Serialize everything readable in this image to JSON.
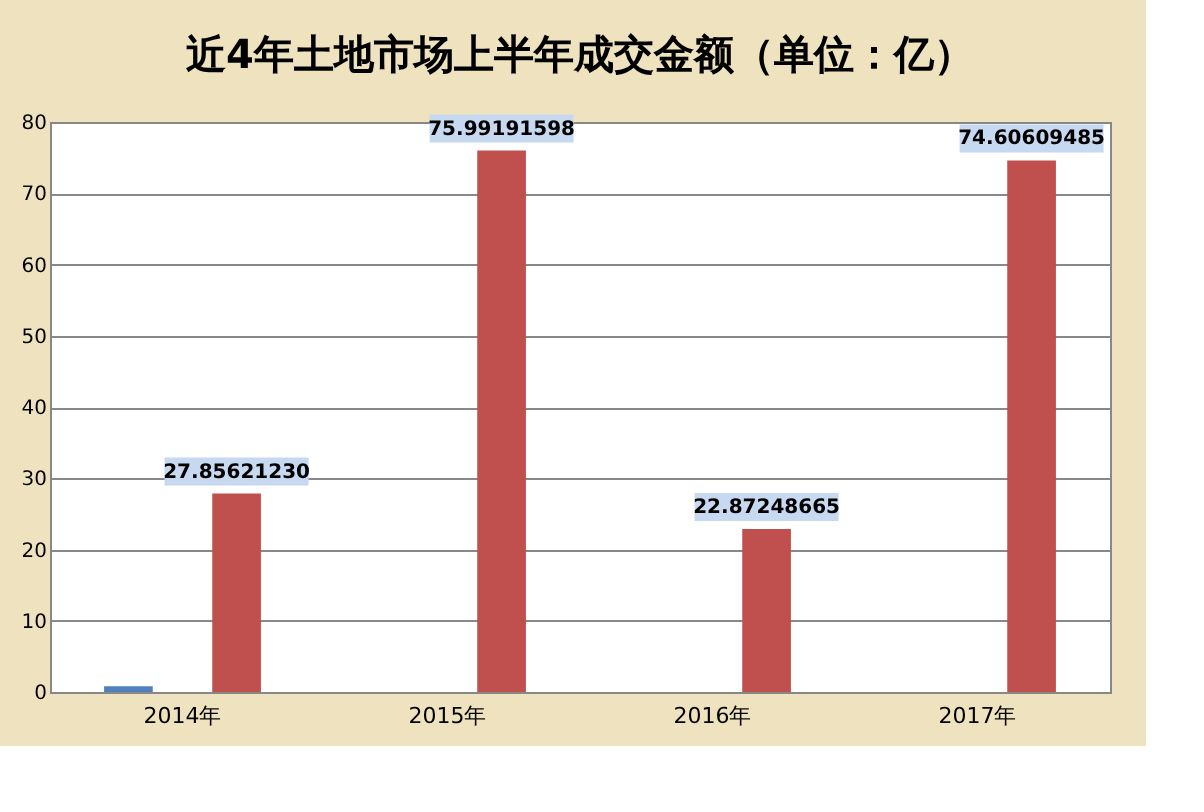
{
  "chart_data": {
    "type": "bar",
    "title": "近4年土地市场上半年成交金额（单位：亿）",
    "categories": [
      "2014年",
      "2015年",
      "2016年",
      "2017年"
    ],
    "series": [
      {
        "color": "#4f81bd",
        "values": [
          0.8,
          null,
          null,
          null
        ]
      },
      {
        "color": "#c0504d",
        "values": [
          27.8562123,
          75.99191598,
          22.87248665,
          74.60609485
        ],
        "value_labels": [
          "27.85621230",
          "75.99191598",
          "22.87248665",
          "74.60609485"
        ]
      }
    ],
    "ylim": [
      0,
      80
    ],
    "yticks": [
      0,
      10,
      20,
      30,
      40,
      50,
      60,
      70,
      80
    ],
    "grid": "y",
    "legend": false
  }
}
